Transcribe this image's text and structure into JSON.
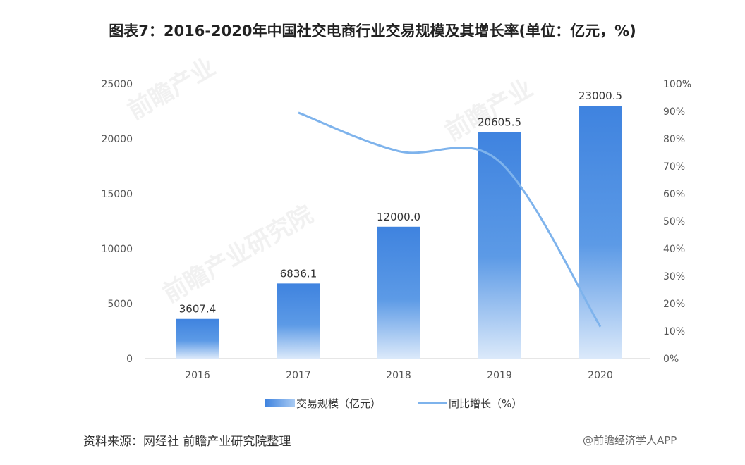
{
  "chart_data": {
    "type": "bar",
    "title": "图表7：2016-2020年中国社交电商行业交易规模及其增长率(单位：亿元，%)",
    "categories": [
      "2016",
      "2017",
      "2018",
      "2019",
      "2020"
    ],
    "series": [
      {
        "name": "交易规模（亿元）",
        "type": "bar",
        "axis": "left",
        "values": [
          3607.4,
          6836.1,
          12000.0,
          20605.5,
          23000.5
        ],
        "labels": [
          "3607.4",
          "6836.1",
          "12000.0",
          "20605.5",
          "23000.5"
        ],
        "color": "#4a8ae0"
      },
      {
        "name": "同比增长（%）",
        "type": "line",
        "axis": "right",
        "values": [
          null,
          89.5,
          75.5,
          71.7,
          11.6
        ],
        "color": "#7eb3ec"
      }
    ],
    "y_left": {
      "range": [
        0,
        25000
      ],
      "ticks": [
        "0",
        "5000",
        "10000",
        "15000",
        "20000",
        "25000"
      ]
    },
    "y_right": {
      "range": [
        0,
        100
      ],
      "ticks": [
        "0%",
        "10%",
        "20%",
        "30%",
        "40%",
        "50%",
        "60%",
        "70%",
        "80%",
        "90%",
        "100%"
      ]
    },
    "grid": false,
    "legend": "bottom"
  },
  "source": "资料来源：网经社 前瞻产业研究院整理",
  "credit": "@前瞻经济学人APP",
  "watermark": "前瞻产业研究院"
}
